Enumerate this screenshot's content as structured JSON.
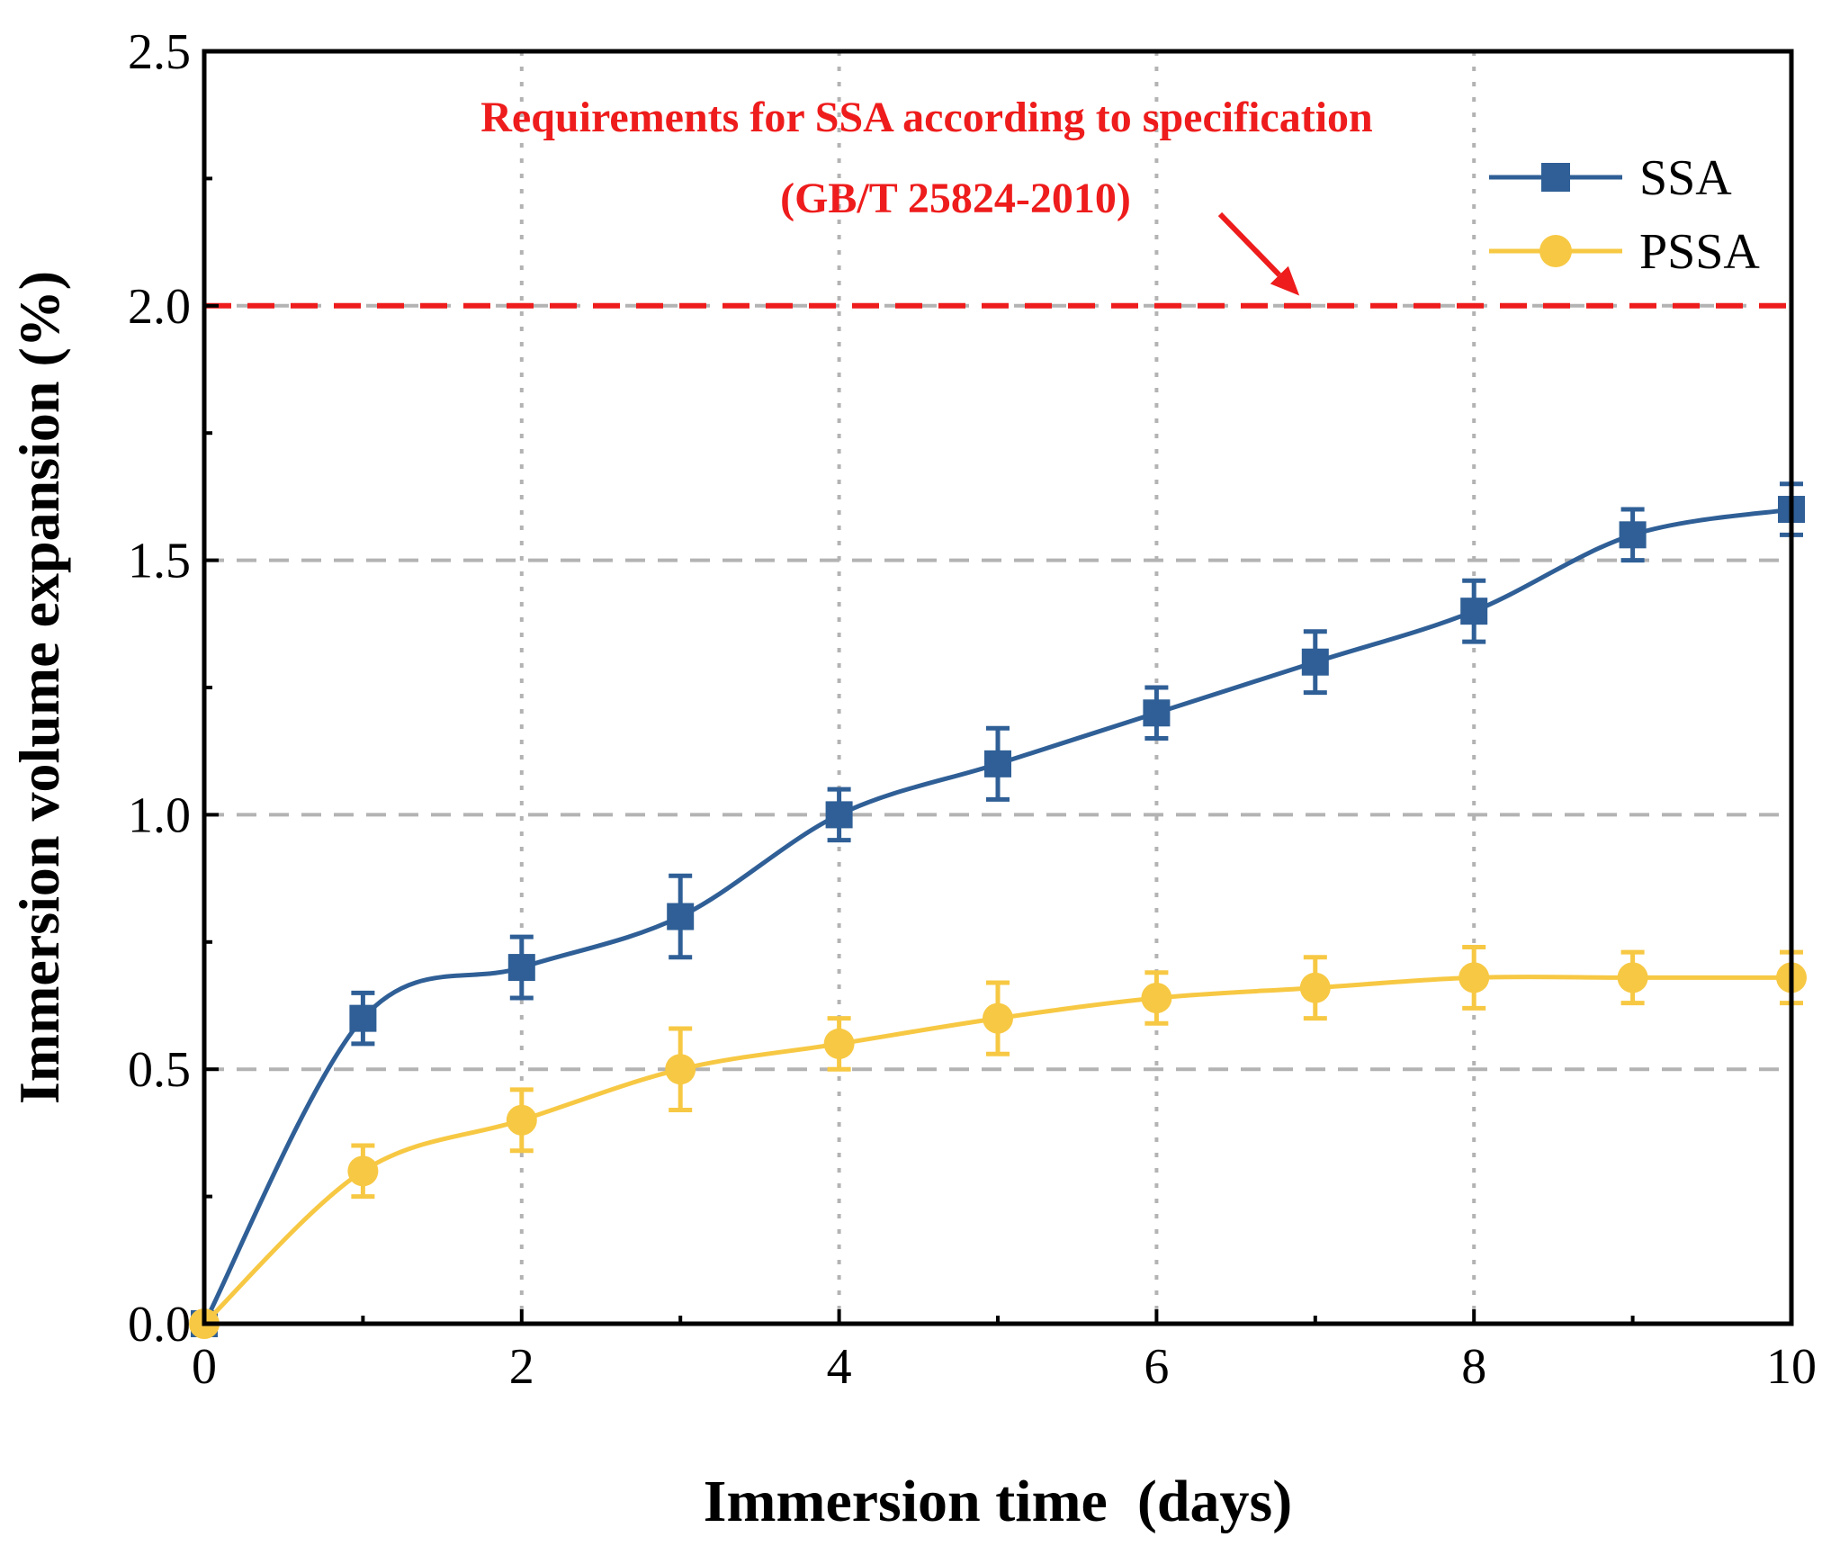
{
  "chart_data": {
    "type": "line",
    "xlabel": "Immersion time  (days)",
    "ylabel": "Immersion volume expansion (%)",
    "xlim": [
      0,
      10
    ],
    "ylim": [
      0,
      2.5
    ],
    "x_major_ticks": [
      0,
      2,
      4,
      6,
      8,
      10
    ],
    "x_minor_ticks": [
      1,
      3,
      5,
      7,
      9
    ],
    "y_major_ticks": [
      0.0,
      0.5,
      1.0,
      1.5,
      2.0,
      2.5
    ],
    "x_tick_labels": [
      "0",
      "2",
      "4",
      "6",
      "8",
      "10"
    ],
    "y_tick_labels": [
      "0.0",
      "0.5",
      "1.0",
      "1.5",
      "2.0",
      "2.5"
    ],
    "grid": true,
    "legend_position": "top-right",
    "series": [
      {
        "name": "SSA",
        "color": "#2f5f96",
        "marker": "square",
        "x": [
          0,
          1,
          2,
          3,
          4,
          5,
          6,
          7,
          8,
          9,
          10
        ],
        "y": [
          0,
          0.6,
          0.7,
          0.8,
          1.0,
          1.1,
          1.2,
          1.3,
          1.4,
          1.55,
          1.6
        ],
        "error": [
          0,
          0.05,
          0.06,
          0.08,
          0.05,
          0.07,
          0.05,
          0.06,
          0.06,
          0.05,
          0.05
        ]
      },
      {
        "name": "PSSA",
        "color": "#f7c843",
        "marker": "circle",
        "x": [
          0,
          1,
          2,
          3,
          4,
          5,
          6,
          7,
          8,
          9,
          10
        ],
        "y": [
          0,
          0.3,
          0.4,
          0.5,
          0.55,
          0.6,
          0.64,
          0.66,
          0.68,
          0.68,
          0.68
        ],
        "error": [
          0,
          0.05,
          0.06,
          0.08,
          0.05,
          0.07,
          0.05,
          0.06,
          0.06,
          0.05,
          0.05
        ]
      }
    ],
    "reference_line": {
      "y": 2.0,
      "color": "#ee1c1c",
      "style": "dashed"
    },
    "annotation": {
      "lines": [
        "Requirements for SSA according to specification",
        "(GB/T 25824-2010)"
      ],
      "color": "#ee1c1c",
      "arrow_from": [
        6.4,
        2.18
      ],
      "arrow_to": [
        6.9,
        2.02
      ]
    }
  }
}
